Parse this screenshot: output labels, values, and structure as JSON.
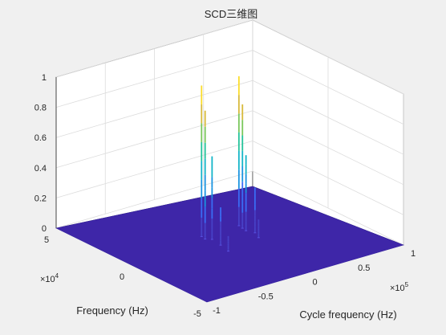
{
  "chart_data": {
    "type": "surface3d",
    "title": "SCD三维图",
    "xlabel": "Cycle frequency (Hz)",
    "ylabel": "Frequency (Hz)",
    "zlabel": "",
    "xlim": [
      -1,
      1
    ],
    "ylim": [
      -5,
      5
    ],
    "zlim": [
      0,
      1
    ],
    "x_ticks": [
      "-1",
      "-0.5",
      "0",
      "0.5",
      "1"
    ],
    "y_ticks": [
      "-5",
      "0",
      "5"
    ],
    "z_ticks": [
      "0",
      "0.2",
      "0.4",
      "0.6",
      "0.8",
      "1"
    ],
    "x_exponent": "×10^5",
    "y_exponent": "×10^4",
    "grid": true,
    "colormap": "parula",
    "surface_color": "#3e26a8",
    "spikes": [
      {
        "x": -0.18,
        "y": 0.7,
        "z": 1.0
      },
      {
        "x": -0.19,
        "y": 0.4,
        "z": 0.85
      },
      {
        "x": -0.15,
        "y": 0.2,
        "z": 0.55
      },
      {
        "x": -0.17,
        "y": -0.5,
        "z": 0.25
      },
      {
        "x": 0.2,
        "y": 0.7,
        "z": 0.99
      },
      {
        "x": 0.19,
        "y": 0.4,
        "z": 0.82
      },
      {
        "x": 0.18,
        "y": 0.1,
        "z": 0.5
      },
      {
        "x": 0.21,
        "y": -0.3,
        "z": 0.3
      },
      {
        "x": 0.17,
        "y": -0.8,
        "z": 0.12
      },
      {
        "x": -0.2,
        "y": -1.2,
        "z": 0.1
      }
    ]
  }
}
